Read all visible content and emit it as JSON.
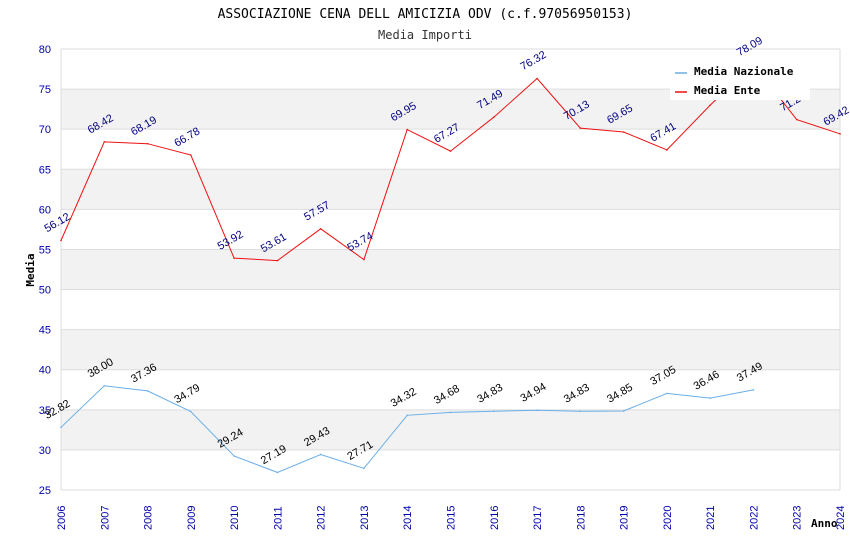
{
  "chart_data": {
    "type": "line",
    "title": "ASSOCIAZIONE CENA DELL AMICIZIA ODV (c.f.97056950153)",
    "subtitle": "Media Importi",
    "xlabel": "Anno",
    "ylabel": "Media",
    "ylim": [
      25,
      80
    ],
    "yticks": [
      25,
      30,
      35,
      40,
      45,
      50,
      55,
      60,
      65,
      70,
      75,
      80
    ],
    "categories": [
      "2006",
      "2007",
      "2008",
      "2009",
      "2010",
      "2011",
      "2012",
      "2013",
      "2014",
      "2015",
      "2016",
      "2017",
      "2018",
      "2019",
      "2020",
      "2021",
      "2022",
      "2023",
      "2024"
    ],
    "series": [
      {
        "name": "Media Nazionale",
        "color": "#6aaee8",
        "values": [
          32.82,
          38.0,
          37.36,
          34.79,
          29.24,
          27.19,
          29.43,
          27.71,
          34.32,
          34.68,
          34.83,
          34.94,
          34.83,
          34.85,
          37.05,
          36.46,
          37.49,
          null,
          null
        ],
        "labels": [
          "32.82",
          "38.00",
          "37.36",
          "34.79",
          "29.24",
          "27.19",
          "29.43",
          "27.71",
          "34.32",
          "34.68",
          "34.83",
          "34.94",
          "34.83",
          "34.85",
          "37.05",
          "36.46",
          "37.49",
          null,
          null
        ]
      },
      {
        "name": "Media Ente",
        "color": "#ee1111",
        "values": [
          56.12,
          68.42,
          68.19,
          66.78,
          53.92,
          53.61,
          57.57,
          53.74,
          69.95,
          67.27,
          71.49,
          76.32,
          70.13,
          69.65,
          67.41,
          73.0,
          78.09,
          71.2,
          69.42
        ],
        "labels": [
          "56.12",
          "68.42",
          "68.19",
          "66.78",
          "53.92",
          "53.61",
          "57.57",
          "53.74",
          "69.95",
          "67.27",
          "71.49",
          "76.32",
          "70.13",
          "69.65",
          "67.41",
          null,
          "78.09",
          "71.2",
          "69.42"
        ]
      }
    ],
    "legend_position": "top-right",
    "grid": "alternating horizontal bands"
  }
}
